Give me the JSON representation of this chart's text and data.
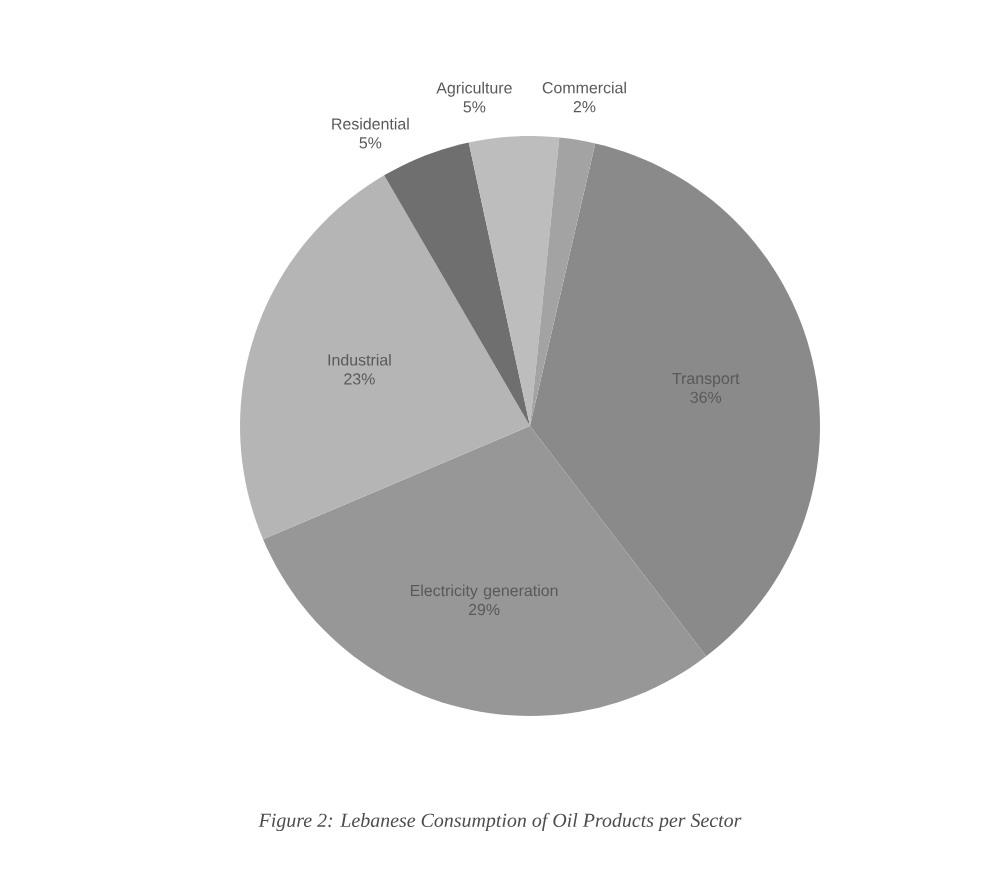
{
  "chart_data": {
    "type": "pie",
    "categories": [
      "Transport",
      "Electricity generation",
      "Industrial",
      "Residential",
      "Agriculture",
      "Commercial"
    ],
    "values": [
      36,
      29,
      23,
      5,
      5,
      2
    ],
    "value_labels": [
      "36%",
      "29%",
      "23%",
      "5%",
      "5%",
      "2%"
    ],
    "colors": [
      "#8a8a8a",
      "#979797",
      "#b5b5b5",
      "#6f6f6f",
      "#bdbdbd",
      "#a3a3a3"
    ],
    "annotations": [
      "Figure 2: Lebanese Consumption of Oil Products per Sector"
    ]
  }
}
